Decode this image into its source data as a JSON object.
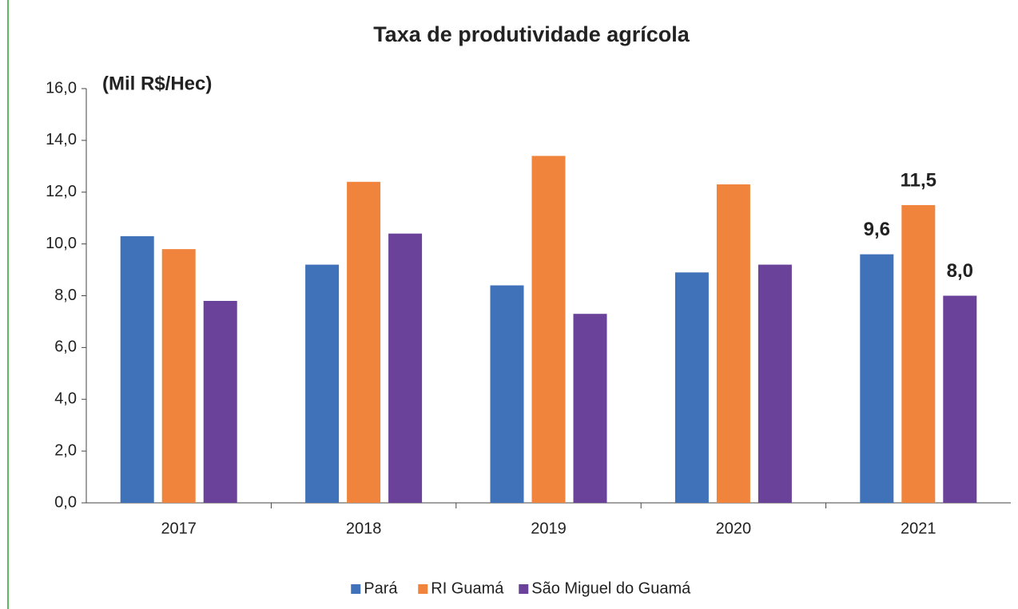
{
  "chart_data": {
    "type": "bar",
    "title": "Taxa de produtividade agrícola",
    "y_axis_label": "(Mil R$/Hec)",
    "categories": [
      "2017",
      "2018",
      "2019",
      "2020",
      "2021"
    ],
    "series": [
      {
        "name": "Pará",
        "color": "#3f72b8",
        "values": [
          10.3,
          9.2,
          8.4,
          8.9,
          9.6
        ],
        "value_labels": [
          null,
          null,
          null,
          null,
          "9,6"
        ]
      },
      {
        "name": "RI Guamá",
        "color": "#f0843c",
        "values": [
          9.8,
          12.4,
          13.4,
          12.3,
          11.5
        ],
        "value_labels": [
          null,
          null,
          null,
          null,
          "11,5"
        ]
      },
      {
        "name": "São Miguel do Guamá",
        "color": "#6a4299",
        "values": [
          7.8,
          10.4,
          7.3,
          9.2,
          8.0
        ],
        "value_labels": [
          null,
          null,
          null,
          null,
          "8,0"
        ]
      }
    ],
    "ylim": [
      0,
      16
    ],
    "yticks": [
      {
        "value": 0,
        "label": "0,0"
      },
      {
        "value": 2,
        "label": "2,0"
      },
      {
        "value": 4,
        "label": "4,0"
      },
      {
        "value": 6,
        "label": "6,0"
      },
      {
        "value": 8,
        "label": "8,0"
      },
      {
        "value": 10,
        "label": "10,0"
      },
      {
        "value": 12,
        "label": "12,0"
      },
      {
        "value": 14,
        "label": "14,0"
      },
      {
        "value": 16,
        "label": "16,0"
      }
    ],
    "grid": false,
    "legend": "bottom"
  }
}
